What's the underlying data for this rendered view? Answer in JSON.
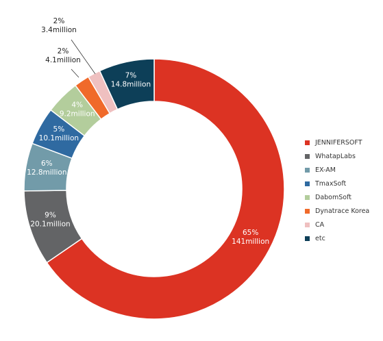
{
  "chart_data": {
    "type": "pie",
    "donut": true,
    "categories": [
      "JENNIFERSOFT",
      "WhatapLabs",
      "EX-AM",
      "TmaxSoft",
      "DabomSoft",
      "Dynatrace Korea",
      "CA",
      "etc"
    ],
    "values": [
      141,
      20.1,
      12.8,
      10.1,
      9.2,
      4.1,
      3.4,
      14.8
    ],
    "units": "million",
    "labels": [
      {
        "pct": "65%",
        "val": "141million"
      },
      {
        "pct": "9%",
        "val": "20.1million"
      },
      {
        "pct": "6%",
        "val": "12.8million"
      },
      {
        "pct": "5%",
        "val": "10.1million"
      },
      {
        "pct": "4%",
        "val": "9.2million"
      },
      {
        "pct": "2%",
        "val": "4.1million"
      },
      {
        "pct": "2%",
        "val": "3.4million"
      },
      {
        "pct": "7%",
        "val": "14.8million"
      }
    ],
    "colors": [
      "#dc3323",
      "#636466",
      "#729ba9",
      "#2f6aa1",
      "#b3cd9c",
      "#f06a2a",
      "#efc0c0",
      "#0d3f58"
    ],
    "legend_position": "right",
    "title": ""
  }
}
